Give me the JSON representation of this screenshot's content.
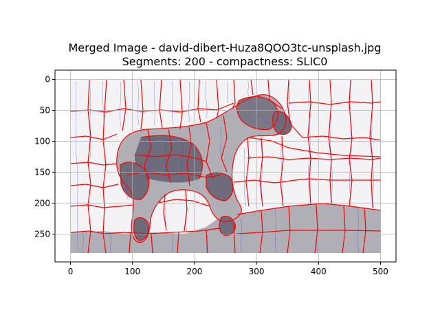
{
  "title_line1": "Merged Image - david-dibert-Huza8QOO3tc-unsplash.jpg",
  "title_line2": "Segments: 200 - compactness: SLIC0",
  "x_ticks": [
    "0",
    "100",
    "200",
    "300",
    "400",
    "500"
  ],
  "y_ticks": [
    "0",
    "50",
    "100",
    "150",
    "200",
    "250"
  ],
  "x_range": [
    -25,
    525
  ],
  "y_range": [
    295,
    -15
  ],
  "image_extent": {
    "x": [
      0,
      500
    ],
    "y": [
      0,
      280
    ]
  },
  "grid": true,
  "colors": {
    "background_light": "#f3f2f4",
    "segment_gray": "#b1afb6",
    "segment_dark": "#6e6c7a",
    "boundary": "#ff0000",
    "flow_lines": "#3a3adf",
    "grid": "#b0b0b0"
  }
}
